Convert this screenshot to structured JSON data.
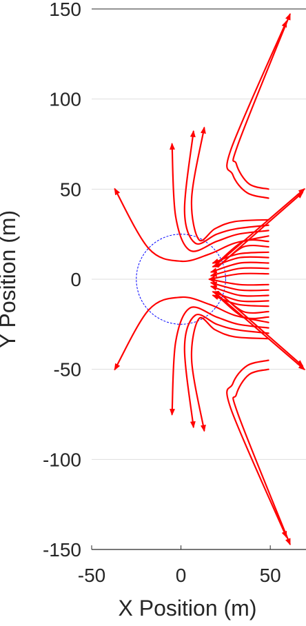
{
  "chart_data": {
    "type": "line",
    "title": "",
    "xlabel": "X Position (m)",
    "ylabel": "Y Position (m)",
    "xlim": [
      -50,
      70
    ],
    "ylim": [
      -150,
      150
    ],
    "xticks": [
      -50,
      0,
      50
    ],
    "yticks": [
      -150,
      -100,
      -50,
      0,
      50,
      100,
      150
    ],
    "xtick_labels": [
      "-50",
      "0",
      "50"
    ],
    "ytick_labels": [
      "-150",
      "-100",
      "-50",
      "0",
      "50",
      "100",
      "150"
    ],
    "grid": true,
    "colors": {
      "trajectory": "#ff0000",
      "circle": "#0000ff",
      "grid": "#dddddd",
      "axis": "#262626"
    },
    "circle": {
      "cx": 0,
      "cy": 0,
      "r": 25,
      "style": "dashed"
    },
    "series": [
      {
        "points": [
          [
            49,
            50
          ],
          [
            38,
            53
          ],
          [
            31,
            64
          ],
          [
            32,
            75
          ],
          [
            61,
            147
          ]
        ]
      },
      {
        "points": [
          [
            49,
            45
          ],
          [
            37,
            48
          ],
          [
            29,
            58
          ],
          [
            28,
            72
          ],
          [
            59,
            143
          ]
        ]
      },
      {
        "points": [
          [
            49,
            33
          ],
          [
            30,
            32
          ],
          [
            19,
            28
          ],
          [
            10,
            22
          ],
          [
            6,
            45
          ],
          [
            13,
            84
          ]
        ]
      },
      {
        "points": [
          [
            49,
            30
          ],
          [
            31,
            28
          ],
          [
            20,
            25
          ],
          [
            8,
            20
          ],
          [
            2,
            38
          ],
          [
            7,
            82
          ]
        ]
      },
      {
        "points": [
          [
            49,
            27
          ],
          [
            32,
            25
          ],
          [
            20,
            21
          ],
          [
            5,
            16
          ],
          [
            -3,
            35
          ],
          [
            -5,
            75
          ]
        ]
      },
      {
        "points": [
          [
            49,
            24
          ],
          [
            30,
            20
          ],
          [
            16,
            14
          ],
          [
            0,
            10
          ],
          [
            -18,
            17
          ],
          [
            -37,
            50
          ]
        ]
      },
      {
        "points": [
          [
            49,
            21
          ],
          [
            35,
            21
          ],
          [
            22,
            10
          ],
          [
            69,
            50
          ]
        ]
      },
      {
        "points": [
          [
            49,
            18
          ],
          [
            35,
            18
          ],
          [
            22,
            8
          ],
          [
            68,
            48
          ]
        ]
      },
      {
        "points": [
          [
            49,
            15
          ],
          [
            32,
            14
          ],
          [
            18,
            9
          ]
        ]
      },
      {
        "points": [
          [
            49,
            12
          ],
          [
            33,
            12
          ],
          [
            18,
            7
          ]
        ]
      },
      {
        "points": [
          [
            49,
            9
          ],
          [
            33,
            9
          ],
          [
            17,
            4
          ]
        ]
      },
      {
        "points": [
          [
            49,
            6
          ],
          [
            33,
            6
          ],
          [
            17,
            2
          ]
        ]
      },
      {
        "points": [
          [
            49,
            3
          ],
          [
            33,
            3
          ],
          [
            16,
            0
          ]
        ]
      },
      {
        "points": [
          [
            49,
            -3
          ],
          [
            33,
            -3
          ],
          [
            16,
            0
          ]
        ]
      },
      {
        "points": [
          [
            49,
            -6
          ],
          [
            33,
            -6
          ],
          [
            17,
            -2
          ]
        ]
      },
      {
        "points": [
          [
            49,
            -9
          ],
          [
            33,
            -9
          ],
          [
            17,
            -4
          ]
        ]
      },
      {
        "points": [
          [
            49,
            -12
          ],
          [
            33,
            -12
          ],
          [
            18,
            -7
          ]
        ]
      },
      {
        "points": [
          [
            49,
            -15
          ],
          [
            32,
            -14
          ],
          [
            18,
            -9
          ]
        ]
      },
      {
        "points": [
          [
            49,
            -18
          ],
          [
            35,
            -18
          ],
          [
            22,
            -8
          ],
          [
            68,
            -48
          ]
        ]
      },
      {
        "points": [
          [
            49,
            -21
          ],
          [
            35,
            -21
          ],
          [
            22,
            -10
          ],
          [
            69,
            -50
          ]
        ]
      },
      {
        "points": [
          [
            49,
            -24
          ],
          [
            30,
            -20
          ],
          [
            16,
            -14
          ],
          [
            0,
            -10
          ],
          [
            -18,
            -17
          ],
          [
            -37,
            -50
          ]
        ]
      },
      {
        "points": [
          [
            49,
            -27
          ],
          [
            32,
            -25
          ],
          [
            20,
            -21
          ],
          [
            5,
            -16
          ],
          [
            -3,
            -35
          ],
          [
            -5,
            -75
          ]
        ]
      },
      {
        "points": [
          [
            49,
            -30
          ],
          [
            31,
            -28
          ],
          [
            20,
            -25
          ],
          [
            8,
            -20
          ],
          [
            2,
            -38
          ],
          [
            7,
            -82
          ]
        ]
      },
      {
        "points": [
          [
            49,
            -33
          ],
          [
            30,
            -32
          ],
          [
            19,
            -28
          ],
          [
            10,
            -22
          ],
          [
            6,
            -45
          ],
          [
            13,
            -84
          ]
        ]
      },
      {
        "points": [
          [
            49,
            -45
          ],
          [
            37,
            -48
          ],
          [
            29,
            -58
          ],
          [
            28,
            -72
          ],
          [
            59,
            -143
          ]
        ]
      },
      {
        "points": [
          [
            49,
            -50
          ],
          [
            38,
            -53
          ],
          [
            31,
            -64
          ],
          [
            32,
            -75
          ],
          [
            61,
            -147
          ]
        ]
      }
    ]
  }
}
